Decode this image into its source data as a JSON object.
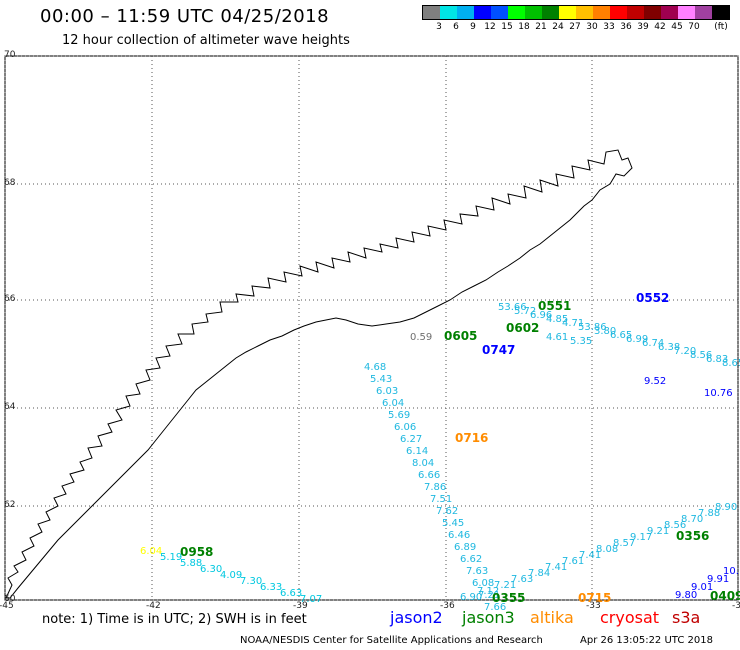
{
  "header": {
    "title": "00:00 – 11:59 UTC 04/25/2018",
    "subtitle": "12 hour collection of altimeter wave heights"
  },
  "legend": {
    "colors": [
      "#7f7f7f",
      "#00e5e5",
      "#00b0f0",
      "#0000ff",
      "#0050ff",
      "#00ff00",
      "#00c000",
      "#008000",
      "#ffff00",
      "#ffc000",
      "#ff8000",
      "#ff0000",
      "#c00000",
      "#800000",
      "#a00050",
      "#ff80ff",
      "#a040a0",
      "#000000"
    ],
    "labels": [
      "3",
      "6",
      "9",
      "12",
      "15",
      "18",
      "21",
      "24",
      "27",
      "30",
      "33",
      "36",
      "39",
      "42",
      "45",
      "70",
      "(ft)"
    ]
  },
  "axes": {
    "lat_labels": [
      "70",
      "68",
      "66",
      "64",
      "62",
      "60"
    ],
    "lon_labels": [
      "-45",
      "-42",
      "-39",
      "-36",
      "-33",
      "-30"
    ]
  },
  "passes": [
    {
      "name": "pass-0958",
      "time": "0958",
      "color": "#008000",
      "label_xy": null,
      "values": [
        "6.04",
        "5.19",
        "5.88",
        "6.30",
        "4.09",
        "7.30",
        "6.33",
        "6.63",
        "7.07"
      ],
      "value_colors": [
        "#ffff00",
        "#00c8e0",
        "#00c8e0",
        "#00c8e0",
        "#00c8e0",
        "#00c8e0",
        "#00c8e0",
        "#00c8e0",
        "#00c8e0"
      ]
    },
    {
      "name": "pass-0716",
      "time": "0716",
      "color": "#ff8c00",
      "values": [
        "4.68",
        "5.43",
        "6.03",
        "6.04",
        "5.69",
        "6.06",
        "6.27",
        "6.14",
        "8.04",
        "6.66",
        "7.86",
        "7.51",
        "7.62",
        "5.45",
        "6.46",
        "6.89",
        "6.62",
        "7.63",
        "6.08",
        "7.21",
        "7.66"
      ],
      "value_colors": []
    },
    {
      "name": "pass-0605",
      "time": "0605",
      "color": "#008000",
      "values": [
        "0.59"
      ],
      "value_colors": [
        "#707070"
      ]
    },
    {
      "name": "pass-0355",
      "time": "0355",
      "color": "#008000",
      "values": [
        "6.90",
        "7.12",
        "7.21",
        "7.63",
        "7.84",
        "7.41",
        "7.61",
        "7.41",
        "8.08",
        "8.57",
        "9.17",
        "9.21",
        "8.56",
        "8.70",
        "7.88",
        "8.90"
      ],
      "value_colors": []
    },
    {
      "name": "pass-0356",
      "time": "0356",
      "color": "#008000",
      "values": [],
      "value_colors": []
    },
    {
      "name": "pass-0715",
      "time": "0715",
      "color": "#ff8c00",
      "values": [],
      "value_colors": []
    },
    {
      "name": "pass-0409",
      "time": "0409",
      "color": "#008000",
      "values": [
        "9.80",
        "9.01",
        "9.91",
        "10.1"
      ],
      "value_colors": [
        "#0000ff",
        "#0000ff",
        "#0000ff",
        "#0000ff"
      ]
    },
    {
      "name": "pass-0551",
      "time": "0551",
      "color": "#008000",
      "values": [
        "53.66",
        "5.72",
        "6.96",
        "4.85",
        "4.71",
        "53.86",
        "3.80",
        "6.65",
        "6.99",
        "6.74",
        "6.38",
        "7.20",
        "8.56",
        "6.83",
        "8.65"
      ],
      "value_colors": []
    },
    {
      "name": "pass-0552",
      "time": "0552",
      "color": "#0000ff",
      "values": [],
      "value_colors": []
    },
    {
      "name": "pass-0602",
      "time": "0602",
      "color": "#008000",
      "values": [
        "4.61",
        "5.35"
      ],
      "value_colors": []
    },
    {
      "name": "pass-0747",
      "time": "0747",
      "color": "#0000ff",
      "values": [
        "9.52",
        "10.76"
      ],
      "value_colors": [
        "#0000ff",
        "#0000ff"
      ]
    }
  ],
  "footer": {
    "note": "note: 1) Time is in UTC; 2) SWH is in feet",
    "satellites": [
      {
        "name": "jason2",
        "color": "#0000ff"
      },
      {
        "name": "jason3",
        "color": "#008000"
      },
      {
        "name": "altika",
        "color": "#ff8c00"
      },
      {
        "name": "cryosat",
        "color": "#ff0000"
      },
      {
        "name": "s3a",
        "color": "#c00000"
      }
    ],
    "credit": "NOAA/NESDIS Center for Satellite Applications and Research",
    "timestamp": "Apr 26 13:05:22 UTC 2018"
  }
}
